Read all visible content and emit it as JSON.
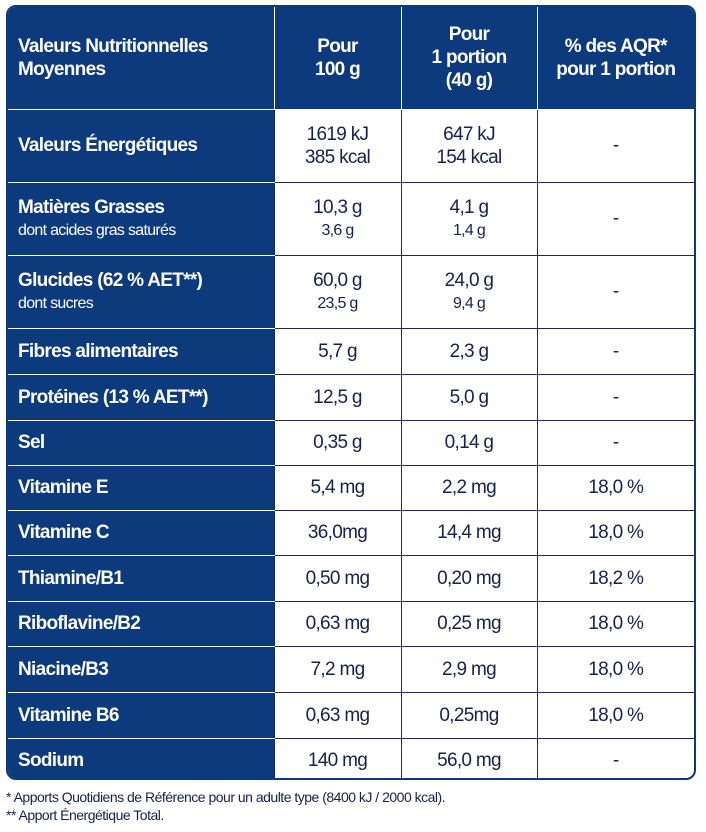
{
  "header": {
    "col1": [
      "Valeurs Nutritionnelles",
      "Moyennes"
    ],
    "col2": [
      "Pour",
      "100 g"
    ],
    "col3": [
      "Pour",
      "1 portion",
      "(40 g)"
    ],
    "col4": [
      "% des AQR*",
      "pour 1 portion"
    ]
  },
  "rows": [
    {
      "label": "Valeurs Énergétiques",
      "per100": [
        "1619 kJ",
        "385 kcal"
      ],
      "portion": [
        "647 kJ",
        "154 kcal"
      ],
      "aqr": "-"
    },
    {
      "label": "Matières Grasses",
      "sublabel": "dont acides gras saturés",
      "per100": [
        "10,3 g",
        "3,6 g"
      ],
      "portion": [
        "4,1 g",
        "1,4 g"
      ],
      "aqr": "-"
    },
    {
      "label": "Glucides (62 % AET**)",
      "sublabel": "dont sucres",
      "per100": [
        "60,0 g",
        "23,5 g"
      ],
      "portion": [
        "24,0 g",
        "9,4 g"
      ],
      "aqr": "-"
    },
    {
      "label": "Fibres alimentaires",
      "per100": [
        "5,7 g"
      ],
      "portion": [
        "2,3 g"
      ],
      "aqr": "-"
    },
    {
      "label": "Protéines (13 % AET**)",
      "per100": [
        "12,5 g"
      ],
      "portion": [
        "5,0 g"
      ],
      "aqr": "-"
    },
    {
      "label": "Sel",
      "per100": [
        "0,35 g"
      ],
      "portion": [
        "0,14 g"
      ],
      "aqr": "-"
    },
    {
      "label": "Vitamine E",
      "per100": [
        "5,4 mg"
      ],
      "portion": [
        "2,2 mg"
      ],
      "aqr": "18,0 %"
    },
    {
      "label": "Vitamine C",
      "per100": [
        "36,0mg"
      ],
      "portion": [
        "14,4 mg"
      ],
      "aqr": "18,0 %"
    },
    {
      "label": "Thiamine/B1",
      "per100": [
        "0,50 mg"
      ],
      "portion": [
        "0,20 mg"
      ],
      "aqr": "18,2 %"
    },
    {
      "label": "Riboflavine/B2",
      "per100": [
        "0,63 mg"
      ],
      "portion": [
        "0,25 mg"
      ],
      "aqr": "18,0 %"
    },
    {
      "label": "Niacine/B3",
      "per100": [
        "7,2 mg"
      ],
      "portion": [
        "2,9 mg"
      ],
      "aqr": "18,0 %"
    },
    {
      "label": "Vitamine B6",
      "per100": [
        "0,63 mg"
      ],
      "portion": [
        "0,25mg"
      ],
      "aqr": "18,0 %"
    },
    {
      "label": "Sodium",
      "per100": [
        "140 mg"
      ],
      "portion": [
        "56,0 mg"
      ],
      "aqr": "-"
    }
  ],
  "footnotes": [
    "* Apports Quotidiens de Référence pour un adulte type (8400 kJ / 2000 kcal).",
    "** Apport Énergétique Total."
  ]
}
